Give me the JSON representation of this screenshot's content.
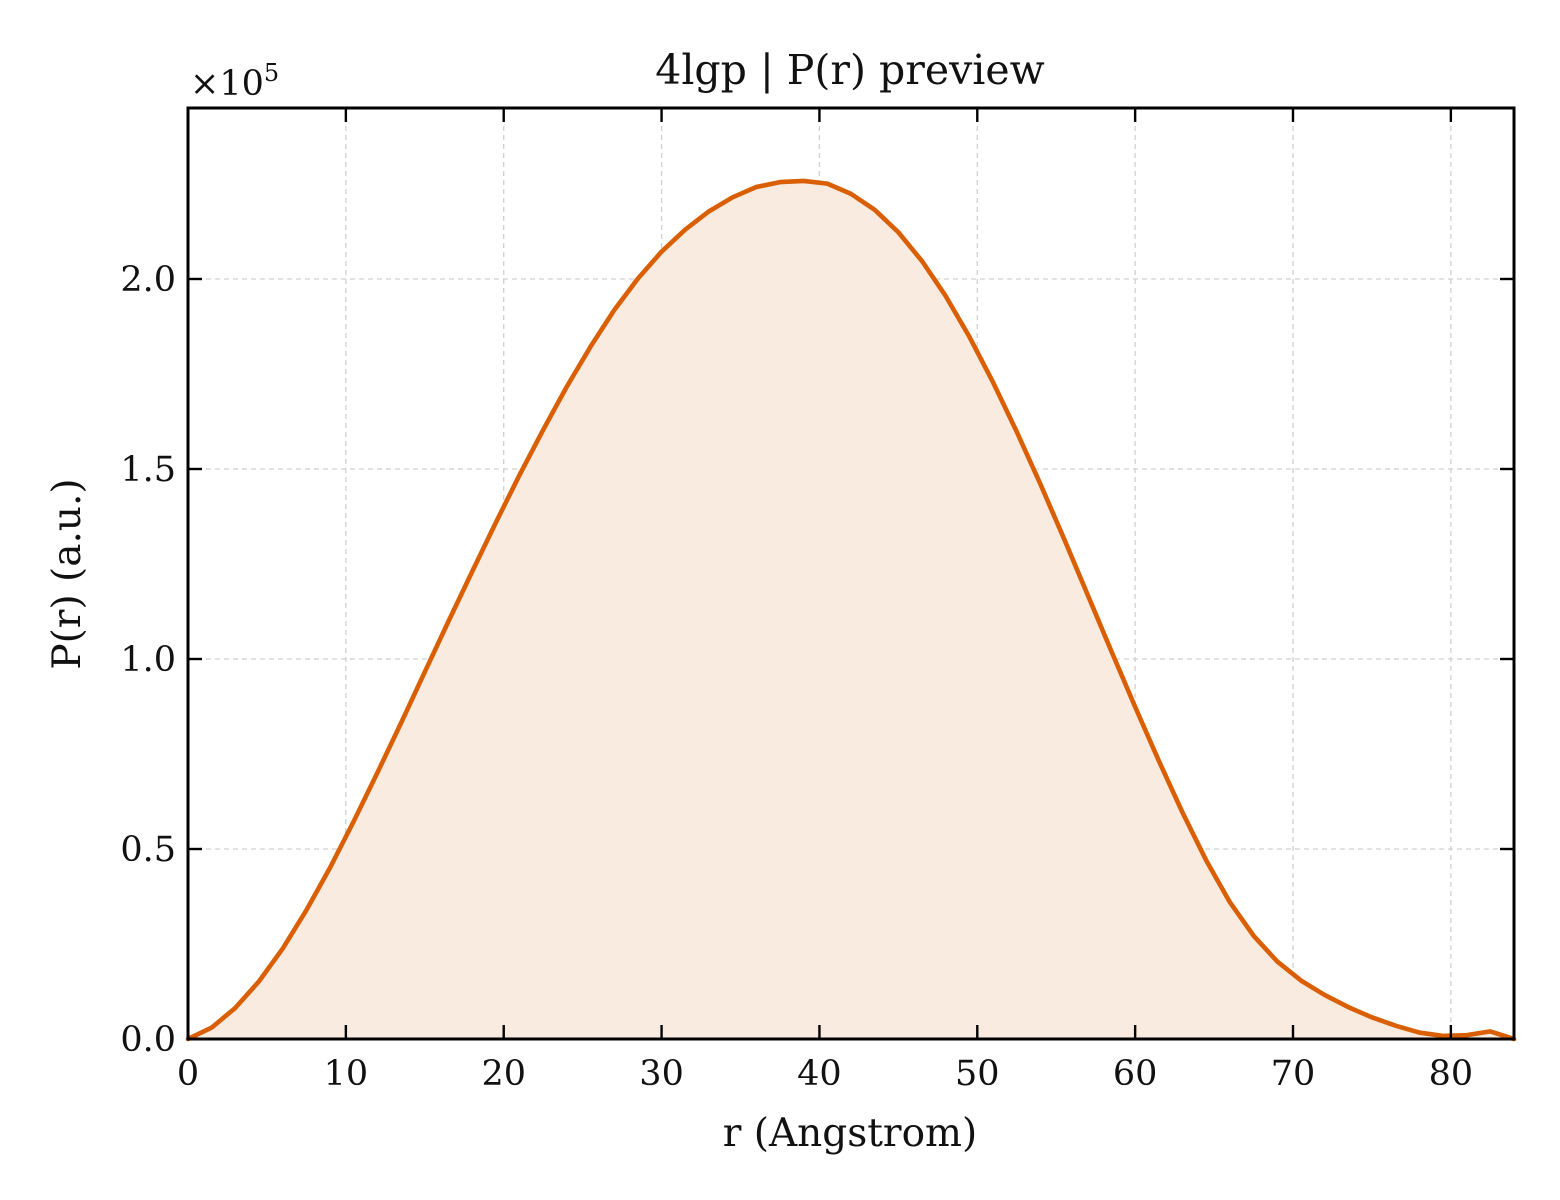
{
  "chart_data": {
    "type": "area",
    "title": "4lgp | P(r) preview",
    "xlabel": "r (Angstrom)",
    "ylabel": "P(r) (a.u.)",
    "y_multiplier_label": "×10⁵",
    "y_multiplier_base": "×10",
    "y_multiplier_exp": "5",
    "xlim": [
      0,
      84
    ],
    "ylim": [
      0,
      2.45
    ],
    "y_unit_scale": 100000,
    "grid": true,
    "x_ticks": [
      0,
      10,
      20,
      30,
      40,
      50,
      60,
      70,
      80
    ],
    "x_tick_labels": [
      "0",
      "10",
      "20",
      "30",
      "40",
      "50",
      "60",
      "70",
      "80"
    ],
    "y_ticks": [
      0.0,
      0.5,
      1.0,
      1.5,
      2.0
    ],
    "y_tick_labels": [
      "0.0",
      "0.5",
      "1.0",
      "1.5",
      "2.0"
    ],
    "series": [
      {
        "color": "#d95f02",
        "fill_color": "#f9ebe0",
        "x": [
          0,
          1.5,
          3,
          4.5,
          6,
          7.5,
          9,
          10.5,
          12,
          13.5,
          15,
          16.5,
          18,
          19.5,
          21,
          22.5,
          24,
          25.5,
          27,
          28.5,
          30,
          31.5,
          33,
          34.5,
          36,
          37.5,
          39,
          40.5,
          42,
          43.5,
          45,
          46.5,
          48,
          49.5,
          51,
          52.5,
          54,
          55.5,
          57,
          58.5,
          60,
          61.5,
          63,
          64.5,
          66,
          67.5,
          69,
          70.5,
          72,
          73.5,
          75,
          76.5,
          78,
          79.5,
          81,
          82.5,
          84
        ],
        "y": [
          0.0,
          0.03,
          0.082,
          0.152,
          0.238,
          0.339,
          0.451,
          0.573,
          0.701,
          0.832,
          0.966,
          1.099,
          1.23,
          1.359,
          1.484,
          1.603,
          1.717,
          1.822,
          1.918,
          2.001,
          2.072,
          2.13,
          2.178,
          2.215,
          2.242,
          2.255,
          2.258,
          2.251,
          2.224,
          2.182,
          2.123,
          2.047,
          1.955,
          1.848,
          1.728,
          1.598,
          1.46,
          1.316,
          1.168,
          1.02,
          0.874,
          0.732,
          0.596,
          0.47,
          0.36,
          0.272,
          0.204,
          0.154,
          0.116,
          0.084,
          0.057,
          0.035,
          0.017,
          0.008,
          0.01,
          0.02,
          0.0
        ]
      }
    ]
  }
}
